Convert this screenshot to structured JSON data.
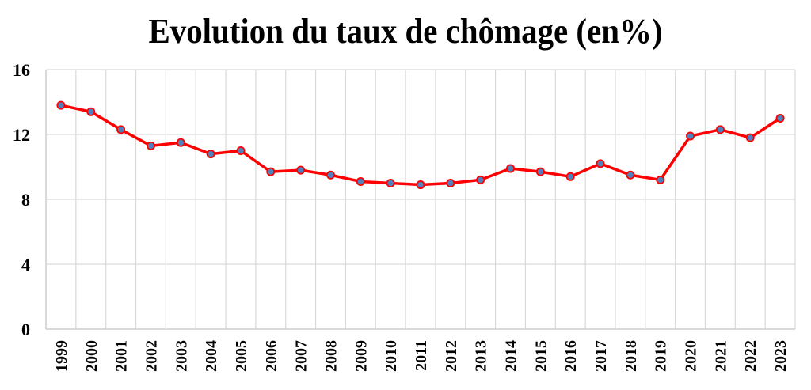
{
  "chart_data": {
    "type": "line",
    "title": "Evolution du taux de chômage (en%)",
    "xlabel": "",
    "ylabel": "",
    "ylim": [
      0,
      16
    ],
    "yticks": [
      0,
      4,
      8,
      12,
      16
    ],
    "grid": true,
    "legend": null,
    "categories": [
      "1999",
      "2000",
      "2001",
      "2002",
      "2003",
      "2004",
      "2005",
      "2006",
      "2007",
      "2008",
      "2009",
      "2010",
      "2011",
      "2012",
      "2013",
      "2014",
      "2015",
      "2016",
      "2017",
      "2018",
      "2019",
      "2020",
      "2021",
      "2022",
      "2023"
    ],
    "series": [
      {
        "name": "Taux de chômage",
        "values": [
          13.8,
          13.4,
          12.3,
          11.3,
          11.5,
          10.8,
          11.0,
          9.7,
          9.8,
          9.5,
          9.1,
          9.0,
          8.9,
          9.0,
          9.2,
          9.9,
          9.7,
          9.4,
          10.2,
          9.5,
          9.2,
          11.9,
          12.3,
          11.8,
          13.0
        ],
        "line_color": "#FF0000",
        "marker_fill": "#4F81BD",
        "marker_stroke": "#FF0000"
      }
    ]
  },
  "colors": {
    "grid": "#D9D9D9",
    "line": "#FF0000",
    "marker": "#4F81BD",
    "text": "#000000"
  }
}
